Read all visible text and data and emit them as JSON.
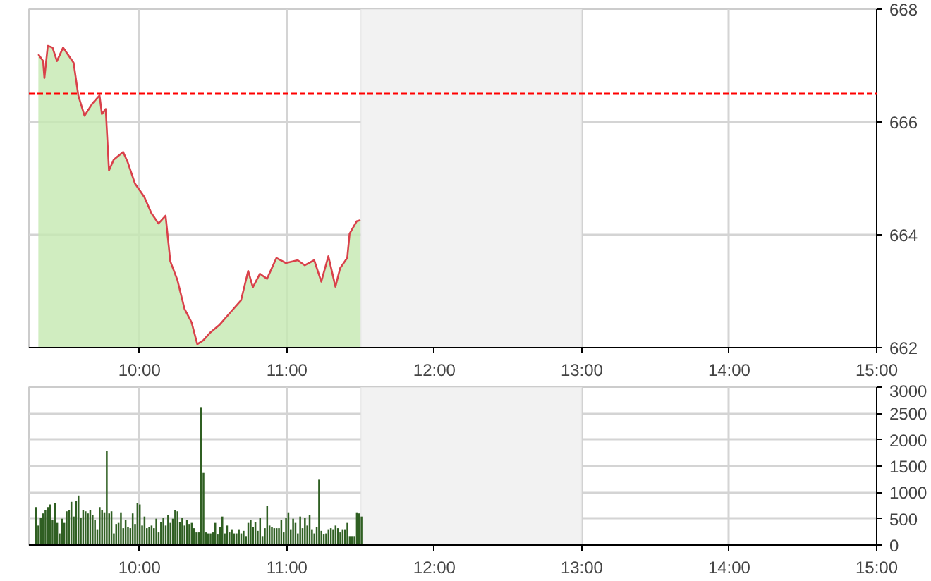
{
  "chart_data": [
    {
      "type": "area",
      "xlim": [
        9.25,
        15
      ],
      "ylim": [
        662,
        668
      ],
      "xticks": [
        {
          "value": 10,
          "label": "10:00"
        },
        {
          "value": 11,
          "label": "11:00"
        },
        {
          "value": 12,
          "label": "12:00"
        },
        {
          "value": 13,
          "label": "13:00"
        },
        {
          "value": 14,
          "label": "14:00"
        },
        {
          "value": 15,
          "label": "15:00"
        }
      ],
      "yticks": [
        662,
        664,
        666,
        668
      ],
      "grid": true,
      "x": [
        9.314,
        9.346,
        9.355,
        9.378,
        9.41,
        9.44,
        9.482,
        9.553,
        9.585,
        9.627,
        9.681,
        9.729,
        9.745,
        9.771,
        9.793,
        9.825,
        9.889,
        9.921,
        9.969,
        10.033,
        10.081,
        10.129,
        10.177,
        10.209,
        10.257,
        10.305,
        10.353,
        10.392,
        10.433,
        10.481,
        10.545,
        10.625,
        10.689,
        10.737,
        10.769,
        10.817,
        10.865,
        10.929,
        10.993,
        11.073,
        11.121,
        11.185,
        11.233,
        11.281,
        11.329,
        11.361,
        11.409,
        11.425,
        11.473,
        11.499
      ],
      "series": [
        {
          "type": "area",
          "color": "#c4e8b0",
          "values": [
            667.2,
            667.08,
            666.78,
            667.35,
            667.32,
            667.08,
            667.32,
            667.05,
            666.47,
            666.11,
            666.33,
            666.47,
            666.14,
            666.23,
            665.14,
            665.33,
            665.47,
            665.28,
            664.91,
            664.67,
            664.38,
            664.2,
            664.34,
            663.53,
            663.2,
            662.69,
            662.45,
            662.06,
            662.13,
            662.27,
            662.41,
            662.65,
            662.84,
            663.36,
            663.07,
            663.31,
            663.22,
            663.59,
            663.5,
            663.55,
            663.46,
            663.55,
            663.17,
            663.62,
            663.08,
            663.41,
            663.59,
            664.02,
            664.24,
            664.26
          ]
        },
        {
          "type": "line",
          "color": "#d9414a",
          "values": [
            667.2,
            667.08,
            666.78,
            667.35,
            667.32,
            667.08,
            667.32,
            667.05,
            666.47,
            666.11,
            666.33,
            666.47,
            666.14,
            666.23,
            665.14,
            665.33,
            665.47,
            665.28,
            664.91,
            664.67,
            664.38,
            664.2,
            664.34,
            663.53,
            663.2,
            662.69,
            662.45,
            662.06,
            662.13,
            662.27,
            662.41,
            662.65,
            662.84,
            663.36,
            663.07,
            663.31,
            663.22,
            663.59,
            663.5,
            663.55,
            663.46,
            663.55,
            663.17,
            663.62,
            663.08,
            663.41,
            663.59,
            664.02,
            664.24,
            664.26
          ]
        }
      ],
      "ref_lines": [
        {
          "axis": "y",
          "value": 666.5,
          "color": "#ff0000",
          "line_style": "dashed"
        }
      ],
      "bands": [
        {
          "axis": "x",
          "from": 11.5,
          "to": 13,
          "color": "#f2f2f2"
        }
      ]
    },
    {
      "type": "bar",
      "xlim": [
        9.25,
        15
      ],
      "ylim": [
        0,
        3000
      ],
      "xticks": [
        {
          "value": 10,
          "label": "10:00"
        },
        {
          "value": 11,
          "label": "11:00"
        },
        {
          "value": 12,
          "label": "12:00"
        },
        {
          "value": 13,
          "label": "13:00"
        },
        {
          "value": 14,
          "label": "14:00"
        },
        {
          "value": 15,
          "label": "15:00"
        }
      ],
      "yticks": [
        0,
        500,
        1000,
        1500,
        2000,
        2500,
        3000
      ],
      "grid": true,
      "x": [
        9.298,
        9.314,
        9.33,
        9.346,
        9.362,
        9.378,
        9.394,
        9.41,
        9.426,
        9.442,
        9.458,
        9.474,
        9.49,
        9.506,
        9.522,
        9.538,
        9.554,
        9.57,
        9.586,
        9.602,
        9.618,
        9.634,
        9.65,
        9.666,
        9.682,
        9.698,
        9.714,
        9.73,
        9.746,
        9.762,
        9.778,
        9.794,
        9.81,
        9.826,
        9.842,
        9.858,
        9.874,
        9.89,
        9.906,
        9.922,
        9.938,
        9.954,
        9.97,
        9.986,
        10.002,
        10.018,
        10.034,
        10.05,
        10.066,
        10.082,
        10.098,
        10.114,
        10.13,
        10.146,
        10.162,
        10.178,
        10.194,
        10.21,
        10.226,
        10.242,
        10.258,
        10.274,
        10.29,
        10.306,
        10.322,
        10.338,
        10.354,
        10.37,
        10.386,
        10.402,
        10.418,
        10.434,
        10.45,
        10.466,
        10.482,
        10.498,
        10.514,
        10.53,
        10.546,
        10.562,
        10.578,
        10.594,
        10.61,
        10.626,
        10.642,
        10.658,
        10.674,
        10.69,
        10.706,
        10.722,
        10.738,
        10.754,
        10.77,
        10.786,
        10.802,
        10.818,
        10.834,
        10.85,
        10.866,
        10.882,
        10.898,
        10.914,
        10.93,
        10.946,
        10.962,
        10.978,
        10.994,
        11.01,
        11.026,
        11.042,
        11.058,
        11.074,
        11.09,
        11.106,
        11.122,
        11.138,
        11.154,
        11.17,
        11.186,
        11.202,
        11.218,
        11.234,
        11.25,
        11.266,
        11.282,
        11.298,
        11.314,
        11.33,
        11.346,
        11.362,
        11.378,
        11.394,
        11.41,
        11.426,
        11.442,
        11.458,
        11.474,
        11.49,
        11.506
      ],
      "series": [
        {
          "color": "#2f5f22",
          "values": [
            720,
            370,
            520,
            600,
            670,
            720,
            770,
            470,
            800,
            420,
            220,
            500,
            420,
            640,
            670,
            820,
            540,
            840,
            940,
            520,
            670,
            640,
            600,
            670,
            570,
            470,
            300,
            720,
            670,
            620,
            1790,
            600,
            640,
            220,
            400,
            420,
            620,
            320,
            470,
            340,
            320,
            600,
            400,
            800,
            770,
            370,
            540,
            320,
            340,
            370,
            320,
            500,
            240,
            440,
            520,
            370,
            570,
            420,
            500,
            670,
            640,
            440,
            520,
            370,
            470,
            400,
            420,
            320,
            240,
            240,
            2620,
            1370,
            240,
            220,
            220,
            240,
            420,
            200,
            340,
            540,
            220,
            370,
            240,
            300,
            220,
            220,
            300,
            220,
            270,
            170,
            420,
            470,
            340,
            440,
            270,
            520,
            170,
            320,
            740,
            370,
            340,
            320,
            320,
            320,
            470,
            240,
            520,
            620,
            300,
            500,
            420,
            220,
            540,
            320,
            520,
            370,
            570,
            300,
            220,
            340,
            1240,
            270,
            200,
            220,
            300,
            320,
            300,
            370,
            320,
            240,
            300,
            300,
            420,
            170,
            170,
            170,
            620,
            600,
            540
          ]
        }
      ],
      "bands": [
        {
          "axis": "x",
          "from": 11.5,
          "to": 13,
          "color": "#f2f2f2"
        }
      ]
    }
  ]
}
